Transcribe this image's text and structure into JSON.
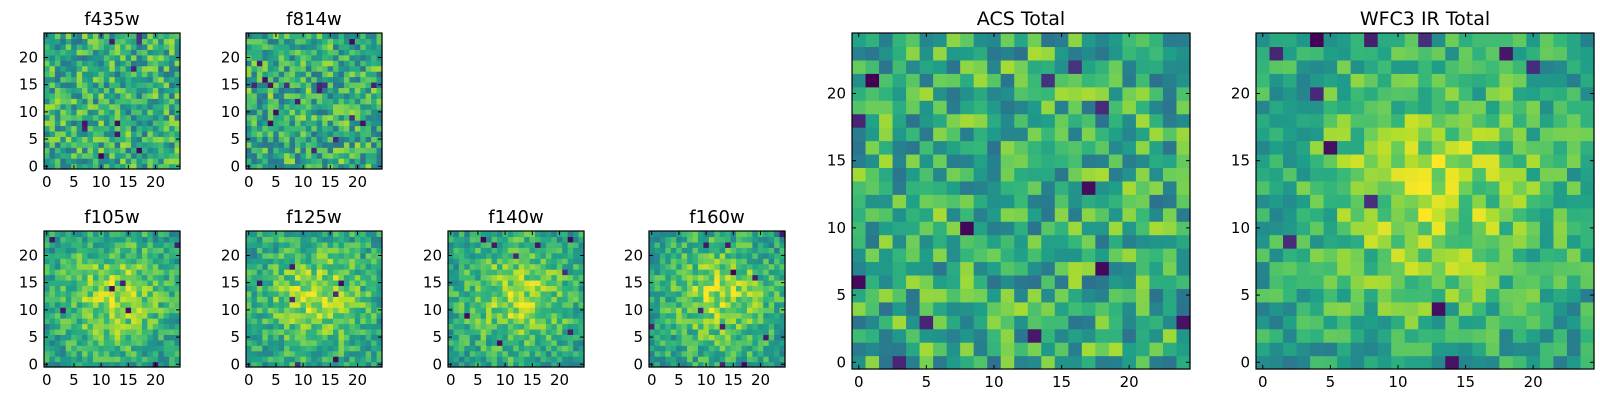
{
  "chart_data": [
    {
      "type": "heatmap",
      "title": "f435w",
      "xlim": [
        -0.5,
        24.5
      ],
      "ylim": [
        -0.5,
        24.5
      ],
      "xticks": [
        0,
        5,
        10,
        15,
        20
      ],
      "yticks": [
        0,
        5,
        10,
        15,
        20
      ],
      "origin": "lower",
      "colormap": "viridis",
      "grid": false,
      "appearance": "noisy",
      "seed": 11
    },
    {
      "type": "heatmap",
      "title": "f814w",
      "xlim": [
        -0.5,
        24.5
      ],
      "ylim": [
        -0.5,
        24.5
      ],
      "xticks": [
        0,
        5,
        10,
        15,
        20
      ],
      "yticks": [
        0,
        5,
        10,
        15,
        20
      ],
      "origin": "lower",
      "colormap": "viridis",
      "grid": false,
      "appearance": "noisy",
      "seed": 23
    },
    {
      "type": "heatmap",
      "title": "f105w",
      "xlim": [
        -0.5,
        24.5
      ],
      "ylim": [
        -0.5,
        24.5
      ],
      "xticks": [
        0,
        5,
        10,
        15,
        20
      ],
      "yticks": [
        0,
        5,
        10,
        15,
        20
      ],
      "origin": "lower",
      "colormap": "viridis",
      "grid": false,
      "appearance": "central source",
      "seed": 37
    },
    {
      "type": "heatmap",
      "title": "f125w",
      "xlim": [
        -0.5,
        24.5
      ],
      "ylim": [
        -0.5,
        24.5
      ],
      "xticks": [
        0,
        5,
        10,
        15,
        20
      ],
      "yticks": [
        0,
        5,
        10,
        15,
        20
      ],
      "origin": "lower",
      "colormap": "viridis",
      "grid": false,
      "appearance": "central source",
      "seed": 41
    },
    {
      "type": "heatmap",
      "title": "f140w",
      "xlim": [
        -0.5,
        24.5
      ],
      "ylim": [
        -0.5,
        24.5
      ],
      "xticks": [
        0,
        5,
        10,
        15,
        20
      ],
      "yticks": [
        0,
        5,
        10,
        15,
        20
      ],
      "origin": "lower",
      "colormap": "viridis",
      "grid": false,
      "appearance": "central source",
      "seed": 53
    },
    {
      "type": "heatmap",
      "title": "f160w",
      "xlim": [
        -0.5,
        24.5
      ],
      "ylim": [
        -0.5,
        24.5
      ],
      "xticks": [
        0,
        5,
        10,
        15,
        20
      ],
      "yticks": [
        0,
        5,
        10,
        15,
        20
      ],
      "origin": "lower",
      "colormap": "viridis",
      "grid": false,
      "appearance": "central source",
      "seed": 67
    },
    {
      "type": "heatmap",
      "title": "ACS Total",
      "xlim": [
        -0.5,
        24.5
      ],
      "ylim": [
        -0.5,
        24.5
      ],
      "xticks": [
        0,
        5,
        10,
        15,
        20
      ],
      "yticks": [
        0,
        5,
        10,
        15,
        20
      ],
      "origin": "lower",
      "colormap": "viridis",
      "grid": false,
      "appearance": "noisy",
      "seed": 79
    },
    {
      "type": "heatmap",
      "title": "WFC3 IR Total",
      "xlim": [
        -0.5,
        24.5
      ],
      "ylim": [
        -0.5,
        24.5
      ],
      "xticks": [
        0,
        5,
        10,
        15,
        20
      ],
      "yticks": [
        0,
        5,
        10,
        15,
        20
      ],
      "origin": "lower",
      "colormap": "viridis",
      "grid": false,
      "appearance": "central source",
      "seed": 97
    }
  ]
}
